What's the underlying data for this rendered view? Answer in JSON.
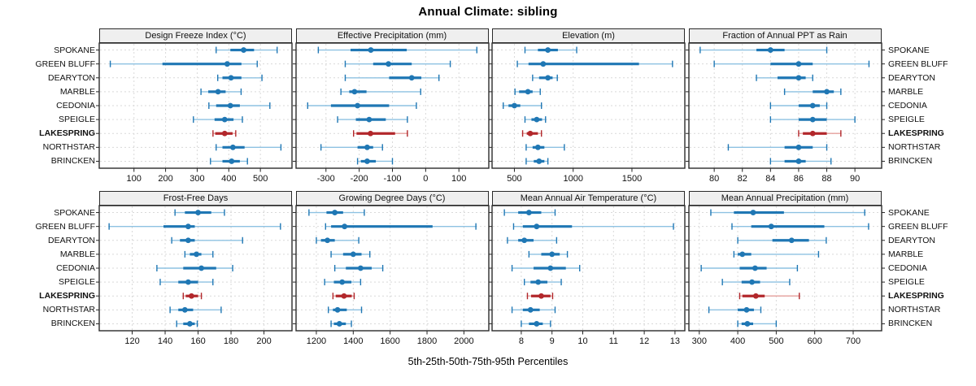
{
  "title": "Annual Climate: sibling",
  "caption": "5th-25th-50th-75th-95th Percentiles",
  "locations": [
    "SPOKANE",
    "GREEN BLUFF",
    "DEARYTON",
    "MARBLE",
    "CEDONIA",
    "SPEIGLE",
    "LAKESPRING",
    "NORTHSTAR",
    "BRINCKEN"
  ],
  "highlight": "LAKESPRING",
  "percentiles": [
    5,
    25,
    50,
    75,
    95
  ],
  "colors": {
    "normal": "#1f77b4",
    "normal_light": "#8ec2e2",
    "highlight": "#b2272b",
    "highlight_light": "#e49f9b",
    "strip_bg": "#efefef",
    "border": "#2a2a2a",
    "grid": "#d9d9d9"
  },
  "chart_data": {
    "type": "interval-dotplot",
    "layout": {
      "rows": 2,
      "cols": 4,
      "grid": "dashed",
      "legend": "none",
      "row_labels": "both-sides"
    },
    "panels": [
      {
        "title": "Design Freeze Index (°C)",
        "ticks": [
          100,
          200,
          300,
          400,
          500
        ],
        "domain": [
          -10,
          600
        ],
        "series": [
          {
            "name": "SPOKANE",
            "values": [
              360,
              405,
              447,
              480,
              553
            ]
          },
          {
            "name": "GREEN BLUFF",
            "values": [
              25,
              190,
              395,
              440,
              490
            ]
          },
          {
            "name": "DEARYTON",
            "values": [
              365,
              380,
              407,
              440,
              505
            ]
          },
          {
            "name": "MARBLE",
            "values": [
              312,
              335,
              366,
              390,
              439
            ]
          },
          {
            "name": "CEDONIA",
            "values": [
              337,
              360,
              405,
              435,
              530
            ]
          },
          {
            "name": "SPEIGLE",
            "values": [
              288,
              355,
              387,
              415,
              443
            ]
          },
          {
            "name": "LAKESPRING",
            "values": [
              350,
              357,
              387,
              412,
              422
            ]
          },
          {
            "name": "NORTHSTAR",
            "values": [
              360,
              380,
              413,
              450,
              565
            ]
          },
          {
            "name": "BRINCKEN",
            "values": [
              342,
              380,
              409,
              435,
              459
            ]
          }
        ]
      },
      {
        "title": "Effective Precipitation (mm)",
        "ticks": [
          -300,
          -200,
          -100,
          0,
          100
        ],
        "domain": [
          -390,
          190
        ],
        "series": [
          {
            "name": "SPOKANE",
            "values": [
              -323,
              -226,
              -165,
              -57,
              154
            ]
          },
          {
            "name": "GREEN BLUFF",
            "values": [
              -242,
              -158,
              -112,
              -42,
              74
            ]
          },
          {
            "name": "DEARYTON",
            "values": [
              -242,
              -110,
              -42,
              -13,
              40
            ]
          },
          {
            "name": "MARBLE",
            "values": [
              -255,
              -230,
              -214,
              -178,
              -15
            ]
          },
          {
            "name": "CEDONIA",
            "values": [
              -355,
              -285,
              -205,
              -110,
              -28
            ]
          },
          {
            "name": "SPEIGLE",
            "values": [
              -265,
              -210,
              -170,
              -120,
              -55
            ]
          },
          {
            "name": "LAKESPRING",
            "values": [
              -217,
              -208,
              -166,
              -92,
              -55
            ]
          },
          {
            "name": "NORTHSTAR",
            "values": [
              -315,
              -205,
              -176,
              -158,
              -130
            ]
          },
          {
            "name": "BRINCKEN",
            "values": [
              -205,
              -195,
              -176,
              -150,
              -100
            ]
          }
        ]
      },
      {
        "title": "Elevation (m)",
        "ticks": [
          500,
          1000,
          1500
        ],
        "domain": [
          310,
          1950
        ],
        "series": [
          {
            "name": "SPOKANE",
            "values": [
              590,
              700,
              785,
              870,
              1030
            ]
          },
          {
            "name": "GREEN BLUFF",
            "values": [
              525,
              620,
              745,
              1560,
              1845
            ]
          },
          {
            "name": "DEARYTON",
            "values": [
              655,
              710,
              785,
              825,
              865
            ]
          },
          {
            "name": "MARBLE",
            "values": [
              505,
              540,
              615,
              655,
              720
            ]
          },
          {
            "name": "CEDONIA",
            "values": [
              405,
              450,
              500,
              550,
              730
            ]
          },
          {
            "name": "SPEIGLE",
            "values": [
              590,
              645,
              690,
              735,
              765
            ]
          },
          {
            "name": "LAKESPRING",
            "values": [
              570,
              605,
              635,
              700,
              730
            ]
          },
          {
            "name": "NORTHSTAR",
            "values": [
              600,
              655,
              700,
              755,
              925
            ]
          },
          {
            "name": "BRINCKEN",
            "values": [
              600,
              665,
              710,
              755,
              785
            ]
          }
        ]
      },
      {
        "title": "Fraction of Annual PPT as Rain",
        "ticks": [
          80,
          82,
          84,
          86,
          88,
          90
        ],
        "domain": [
          78.2,
          91.9
        ],
        "series": [
          {
            "name": "SPOKANE",
            "values": [
              79,
              83,
              84,
              85,
              88
            ]
          },
          {
            "name": "GREEN BLUFF",
            "values": [
              80,
              84,
              86,
              87,
              91
            ]
          },
          {
            "name": "DEARYTON",
            "values": [
              83,
              84.5,
              86,
              86.5,
              87
            ]
          },
          {
            "name": "MARBLE",
            "values": [
              85,
              87,
              88,
              88.5,
              89
            ]
          },
          {
            "name": "CEDONIA",
            "values": [
              84,
              86,
              87,
              87.5,
              88
            ]
          },
          {
            "name": "SPEIGLE",
            "values": [
              84,
              86,
              87,
              88,
              90
            ]
          },
          {
            "name": "LAKESPRING",
            "values": [
              86,
              86.3,
              87,
              88,
              89
            ]
          },
          {
            "name": "NORTHSTAR",
            "values": [
              81,
              85,
              86,
              87,
              88
            ]
          },
          {
            "name": "BRINCKEN",
            "values": [
              84,
              85,
              86,
              86.5,
              88.3
            ]
          }
        ]
      },
      {
        "title": "Frost-Free Days",
        "ticks": [
          120,
          140,
          160,
          180,
          200
        ],
        "domain": [
          100,
          217
        ],
        "series": [
          {
            "name": "SPOKANE",
            "values": [
              146,
              152,
              160,
              168,
              176
            ]
          },
          {
            "name": "GREEN BLUFF",
            "values": [
              106,
              139,
              154,
              158,
              210
            ]
          },
          {
            "name": "DEARYTON",
            "values": [
              144,
              149,
              154,
              158,
              187
            ]
          },
          {
            "name": "MARBLE",
            "values": [
              152,
              155,
              159,
              162,
              169
            ]
          },
          {
            "name": "CEDONIA",
            "values": [
              135,
              151,
              162,
              171,
              181
            ]
          },
          {
            "name": "SPEIGLE",
            "values": [
              137,
              148,
              154,
              160,
              169
            ]
          },
          {
            "name": "LAKESPRING",
            "values": [
              151,
              152.5,
              156,
              160,
              162
            ]
          },
          {
            "name": "NORTHSTAR",
            "values": [
              143,
              148,
              152,
              157,
              174
            ]
          },
          {
            "name": "BRINCKEN",
            "values": [
              147,
              151,
              155,
              158,
              159.5
            ]
          }
        ]
      },
      {
        "title": "Growing Degree Days (°C)",
        "ticks": [
          1200,
          1400,
          1600,
          1800,
          2000
        ],
        "domain": [
          1090,
          2135
        ],
        "series": [
          {
            "name": "SPOKANE",
            "values": [
              1160,
              1255,
              1300,
              1345,
              1460
            ]
          },
          {
            "name": "GREEN BLUFF",
            "values": [
              1250,
              1280,
              1353,
              1830,
              2065
            ]
          },
          {
            "name": "DEARYTON",
            "values": [
              1200,
              1225,
              1260,
              1300,
              1430
            ]
          },
          {
            "name": "MARBLE",
            "values": [
              1280,
              1345,
              1400,
              1445,
              1490
            ]
          },
          {
            "name": "CEDONIA",
            "values": [
              1300,
              1360,
              1440,
              1500,
              1560
            ]
          },
          {
            "name": "SPEIGLE",
            "values": [
              1245,
              1295,
              1340,
              1390,
              1440
            ]
          },
          {
            "name": "LAKESPRING",
            "values": [
              1290,
              1305,
              1350,
              1392,
              1405
            ]
          },
          {
            "name": "NORTHSTAR",
            "values": [
              1265,
              1290,
              1315,
              1365,
              1445
            ]
          },
          {
            "name": "BRINCKEN",
            "values": [
              1280,
              1295,
              1325,
              1360,
              1390
            ]
          }
        ]
      },
      {
        "title": "Mean Annual Air Temperature (°C)",
        "ticks": [
          8,
          9,
          10,
          11,
          12,
          13
        ],
        "domain": [
          7.05,
          13.32
        ],
        "series": [
          {
            "name": "SPOKANE",
            "values": [
              7.45,
              7.9,
              8.25,
              8.65,
              9.1
            ]
          },
          {
            "name": "GREEN BLUFF",
            "values": [
              7.75,
              8.05,
              8.5,
              9.65,
              12.95
            ]
          },
          {
            "name": "DEARYTON",
            "values": [
              7.55,
              7.9,
              8.1,
              8.4,
              9.15
            ]
          },
          {
            "name": "MARBLE",
            "values": [
              8.25,
              8.65,
              9.0,
              9.25,
              9.5
            ]
          },
          {
            "name": "CEDONIA",
            "values": [
              7.7,
              8.4,
              8.95,
              9.45,
              9.9
            ]
          },
          {
            "name": "SPEIGLE",
            "values": [
              8.1,
              8.3,
              8.55,
              8.85,
              9.3
            ]
          },
          {
            "name": "LAKESPRING",
            "values": [
              8.2,
              8.32,
              8.65,
              8.95,
              9.02
            ]
          },
          {
            "name": "NORTHSTAR",
            "values": [
              7.7,
              8.05,
              8.3,
              8.6,
              9.1
            ]
          },
          {
            "name": "BRINCKEN",
            "values": [
              8.0,
              8.25,
              8.5,
              8.7,
              8.95
            ]
          }
        ]
      },
      {
        "title": "Mean Annual Precipitation (mm)",
        "ticks": [
          300,
          400,
          500,
          600,
          700
        ],
        "domain": [
          273,
          774
        ],
        "series": [
          {
            "name": "SPOKANE",
            "values": [
              330,
              390,
              440,
              520,
              730
            ]
          },
          {
            "name": "GREEN BLUFF",
            "values": [
              385,
              435,
              487,
              625,
              740
            ]
          },
          {
            "name": "DEARYTON",
            "values": [
              400,
              490,
              540,
              585,
              630
            ]
          },
          {
            "name": "MARBLE",
            "values": [
              390,
              400,
              412,
              435,
              610
            ]
          },
          {
            "name": "CEDONIA",
            "values": [
              305,
              405,
              445,
              475,
              555
            ]
          },
          {
            "name": "SPEIGLE",
            "values": [
              360,
              410,
              437,
              458,
              535
            ]
          },
          {
            "name": "LAKESPRING",
            "values": [
              405,
              412,
              447,
              470,
              560
            ]
          },
          {
            "name": "NORTHSTAR",
            "values": [
              325,
              400,
              423,
              442,
              460
            ]
          },
          {
            "name": "BRINCKEN",
            "values": [
              400,
              410,
              425,
              440,
              500
            ]
          }
        ]
      }
    ]
  }
}
